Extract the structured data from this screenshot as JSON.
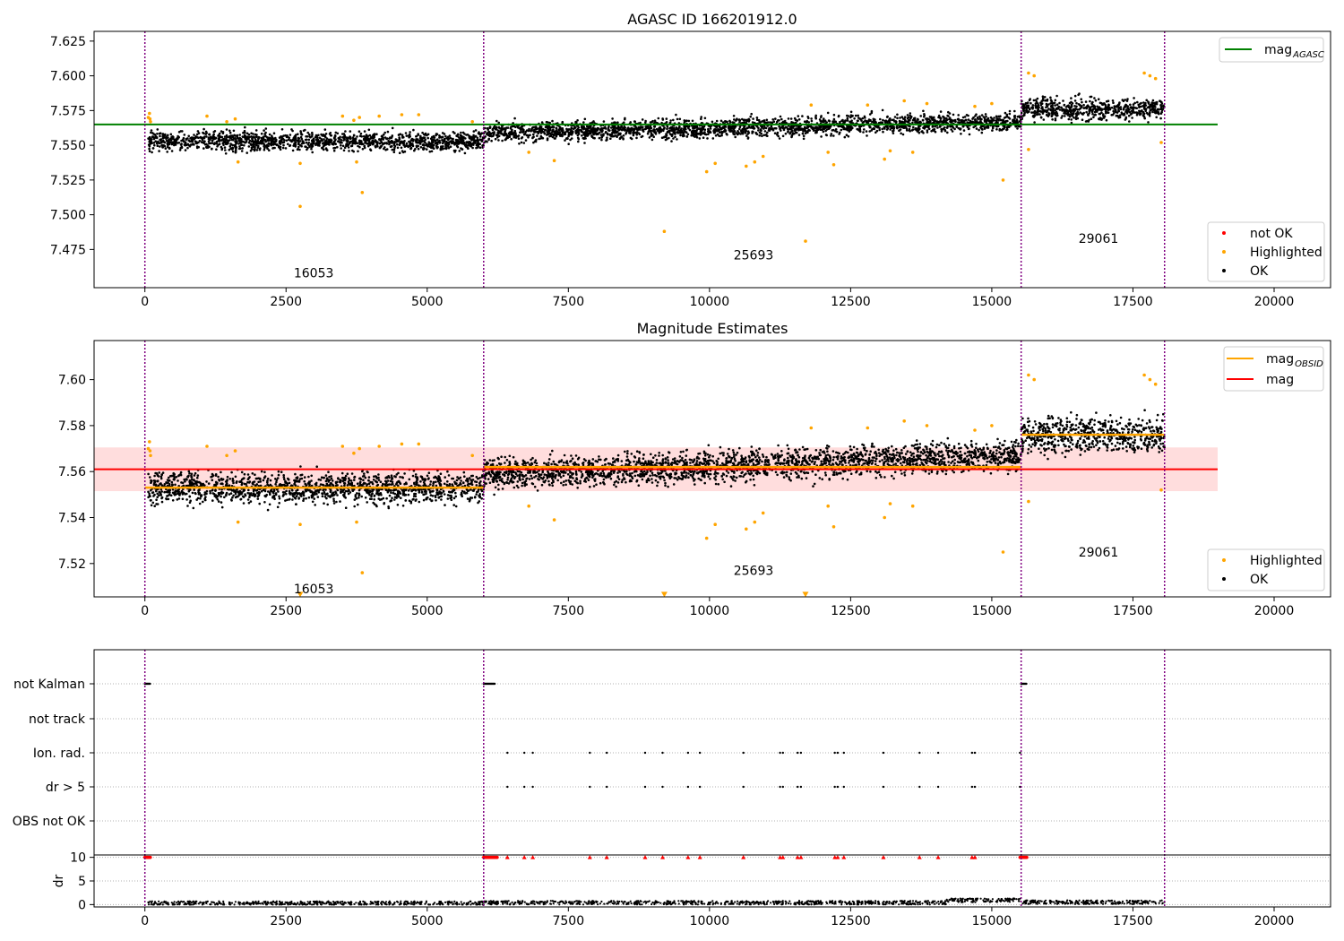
{
  "figure": {
    "title_top": "AGASC ID 166201912.0",
    "title_middle": "Magnitude Estimates"
  },
  "colors": {
    "ok": "#000000",
    "highlighted": "#ffa500",
    "not_ok": "#ff0000",
    "mag_agasc": "#008000",
    "mag_obsid": "#ffa500",
    "mag": "#ff0000",
    "band": "#ffb3b3",
    "obs_boundary": "#800080",
    "red_flag": "#ff0000"
  },
  "chart_data": [
    {
      "type": "scatter",
      "title": "AGASC ID 166201912.0",
      "xlim": [
        -900,
        21000
      ],
      "ylim": [
        7.4475,
        7.632
      ],
      "xticks": [
        0,
        2500,
        5000,
        7500,
        10000,
        12500,
        15000,
        17500,
        20000
      ],
      "yticks": [
        7.475,
        7.5,
        7.525,
        7.55,
        7.575,
        7.6,
        7.625
      ],
      "ytick_labels": [
        "7.475",
        "7.500",
        "7.525",
        "7.550",
        "7.575",
        "7.600",
        "7.625"
      ],
      "grid": false,
      "legend_loc": "upper-right + lower-right",
      "legend_top": [
        {
          "label": "mag",
          "sub": "AGASC",
          "kind": "line",
          "color": "#008000"
        }
      ],
      "legend_bottom": [
        {
          "label": "not OK",
          "kind": "marker",
          "color": "#ff0000"
        },
        {
          "label": "Highlighted",
          "kind": "marker",
          "color": "#ffa500"
        },
        {
          "label": "OK",
          "kind": "marker",
          "color": "#000000"
        }
      ],
      "obs_boundaries": [
        0,
        6000,
        15520,
        18060
      ],
      "obs_labels": [
        {
          "text": "16053",
          "x": 2990,
          "y": 7.458
        },
        {
          "text": "25693",
          "x": 10780,
          "y": 7.471
        },
        {
          "text": "29061",
          "x": 16890,
          "y": 7.483
        }
      ],
      "mag_agasc_line": {
        "x": [
          -900,
          19000
        ],
        "y": 7.565
      },
      "ok_series": [
        {
          "x_range": [
            60,
            6000
          ],
          "center_start": 7.553,
          "center_end": 7.553,
          "spread": 0.0065
        },
        {
          "x_range": [
            6000,
            15520
          ],
          "center_start": 7.559,
          "center_end": 7.567,
          "spread": 0.0065
        },
        {
          "x_range": [
            15520,
            18060
          ],
          "center_start": 7.576,
          "center_end": 7.576,
          "spread": 0.0075
        }
      ],
      "highlighted_points": [
        [
          60,
          7.57
        ],
        [
          80,
          7.573
        ],
        [
          90,
          7.569
        ],
        [
          100,
          7.567
        ],
        [
          1100,
          7.571
        ],
        [
          1450,
          7.567
        ],
        [
          1600,
          7.569
        ],
        [
          1650,
          7.538
        ],
        [
          2750,
          7.537
        ],
        [
          2750,
          7.506
        ],
        [
          3500,
          7.571
        ],
        [
          3700,
          7.568
        ],
        [
          3750,
          7.538
        ],
        [
          3800,
          7.57
        ],
        [
          3850,
          7.516
        ],
        [
          4150,
          7.571
        ],
        [
          4550,
          7.572
        ],
        [
          4850,
          7.572
        ],
        [
          5800,
          7.567
        ],
        [
          6800,
          7.545
        ],
        [
          7250,
          7.539
        ],
        [
          9200,
          7.488
        ],
        [
          9950,
          7.531
        ],
        [
          10100,
          7.537
        ],
        [
          10650,
          7.535
        ],
        [
          10800,
          7.538
        ],
        [
          10950,
          7.542
        ],
        [
          11700,
          7.481
        ],
        [
          11800,
          7.579
        ],
        [
          12100,
          7.545
        ],
        [
          12200,
          7.536
        ],
        [
          12800,
          7.579
        ],
        [
          13100,
          7.54
        ],
        [
          13200,
          7.546
        ],
        [
          13450,
          7.582
        ],
        [
          13600,
          7.545
        ],
        [
          13850,
          7.58
        ],
        [
          14700,
          7.578
        ],
        [
          15000,
          7.58
        ],
        [
          15200,
          7.525
        ],
        [
          15650,
          7.547
        ],
        [
          15650,
          7.602
        ],
        [
          15750,
          7.6
        ],
        [
          17700,
          7.602
        ],
        [
          17800,
          7.6
        ],
        [
          17900,
          7.598
        ],
        [
          18000,
          7.552
        ]
      ]
    },
    {
      "type": "scatter",
      "title": "Magnitude Estimates",
      "xlim": [
        -900,
        21000
      ],
      "ylim": [
        7.5055,
        7.617
      ],
      "xticks": [
        0,
        2500,
        5000,
        7500,
        10000,
        12500,
        15000,
        17500,
        20000
      ],
      "yticks": [
        7.52,
        7.54,
        7.56,
        7.58,
        7.6
      ],
      "ytick_labels": [
        "7.52",
        "7.54",
        "7.56",
        "7.58",
        "7.60"
      ],
      "grid": false,
      "legend_loc": "upper-right + lower-right",
      "legend_top": [
        {
          "label": "mag",
          "sub": "OBSID",
          "kind": "line",
          "color": "#ffa500"
        },
        {
          "label": "mag",
          "kind": "line",
          "color": "#ff0000"
        }
      ],
      "legend_bottom": [
        {
          "label": "Highlighted",
          "kind": "marker",
          "color": "#ffa500"
        },
        {
          "label": "OK",
          "kind": "marker",
          "color": "#000000"
        }
      ],
      "obs_boundaries": [
        0,
        6000,
        15520,
        18060
      ],
      "obs_labels": [
        {
          "text": "16053",
          "x": 2990,
          "y": 7.509
        },
        {
          "text": "25693",
          "x": 10780,
          "y": 7.517
        },
        {
          "text": "29061",
          "x": 16890,
          "y": 7.525
        }
      ],
      "mag_line": {
        "x": [
          -900,
          19000
        ],
        "y": 7.561
      },
      "mag_band": {
        "x": [
          -900,
          19000
        ],
        "y": [
          7.5515,
          7.5705
        ]
      },
      "mag_obsid_lines": [
        {
          "x": [
            0,
            6000
          ],
          "y": 7.553
        },
        {
          "x": [
            6000,
            15520
          ],
          "y": 7.562
        },
        {
          "x": [
            15520,
            18060
          ],
          "y": 7.576
        }
      ],
      "ok_series": [
        {
          "x_range": [
            60,
            6000
          ],
          "center_start": 7.553,
          "center_end": 7.553,
          "spread": 0.0065
        },
        {
          "x_range": [
            6000,
            15520
          ],
          "center_start": 7.559,
          "center_end": 7.567,
          "spread": 0.0065
        },
        {
          "x_range": [
            15520,
            18060
          ],
          "center_start": 7.576,
          "center_end": 7.576,
          "spread": 0.0075
        }
      ],
      "highlighted_points": [
        [
          60,
          7.57
        ],
        [
          80,
          7.573
        ],
        [
          90,
          7.569
        ],
        [
          100,
          7.567
        ],
        [
          1100,
          7.571
        ],
        [
          1450,
          7.567
        ],
        [
          1600,
          7.569
        ],
        [
          1650,
          7.538
        ],
        [
          2750,
          7.537
        ],
        [
          3500,
          7.571
        ],
        [
          3700,
          7.568
        ],
        [
          3750,
          7.538
        ],
        [
          3800,
          7.57
        ],
        [
          3850,
          7.516
        ],
        [
          4150,
          7.571
        ],
        [
          4550,
          7.572
        ],
        [
          4850,
          7.572
        ],
        [
          5800,
          7.567
        ],
        [
          6800,
          7.545
        ],
        [
          7250,
          7.539
        ],
        [
          9950,
          7.531
        ],
        [
          10100,
          7.537
        ],
        [
          10650,
          7.535
        ],
        [
          10800,
          7.538
        ],
        [
          10950,
          7.542
        ],
        [
          11800,
          7.579
        ],
        [
          12100,
          7.545
        ],
        [
          12200,
          7.536
        ],
        [
          12800,
          7.579
        ],
        [
          13100,
          7.54
        ],
        [
          13200,
          7.546
        ],
        [
          13450,
          7.582
        ],
        [
          13600,
          7.545
        ],
        [
          13850,
          7.58
        ],
        [
          14700,
          7.578
        ],
        [
          15000,
          7.58
        ],
        [
          15200,
          7.525
        ],
        [
          15650,
          7.547
        ],
        [
          15650,
          7.602
        ],
        [
          15750,
          7.6
        ],
        [
          17700,
          7.602
        ],
        [
          17800,
          7.6
        ],
        [
          17900,
          7.598
        ],
        [
          18000,
          7.552
        ]
      ],
      "offscale_markers": [
        [
          2750,
          7.5065
        ],
        [
          9200,
          7.5065
        ],
        [
          11700,
          7.5065
        ]
      ]
    },
    {
      "type": "scatter",
      "title": "",
      "xlim": [
        -900,
        21000
      ],
      "xticks": [
        0,
        2500,
        5000,
        7500,
        10000,
        12500,
        15000,
        17500,
        20000
      ],
      "categories": [
        "not Kalman",
        "not track",
        "Ion. rad.",
        "dr > 5",
        "OBS not OK"
      ],
      "grid": "horizontal dotted",
      "obs_boundaries": [
        0,
        6000,
        15520,
        18060
      ],
      "flags": {
        "not Kalman": [
          [
            0,
            100
          ],
          [
            6000,
            6200
          ],
          [
            15520,
            15620
          ]
        ],
        "not track": [],
        "Ion. rad.": [
          6420,
          6720,
          6870,
          7880,
          8180,
          8860,
          9170,
          9620,
          9830,
          10600,
          11250,
          11300,
          11560,
          11620,
          12220,
          12270,
          12380,
          13080,
          13720,
          14050,
          14650,
          14700,
          15500
        ],
        "dr > 5": [
          6420,
          6720,
          6870,
          7880,
          8180,
          8860,
          9170,
          9620,
          9830,
          10600,
          11250,
          11300,
          11560,
          11620,
          12220,
          12270,
          12380,
          13080,
          13720,
          14050,
          14650,
          14700,
          15500
        ],
        "OBS not OK": []
      },
      "dr": {
        "ylabel": "dr",
        "yticks": [
          0,
          5,
          10
        ],
        "ylim": [
          -0.5,
          10.5
        ],
        "typical_levels": [
          {
            "x_range": [
              60,
              6000
            ],
            "level": 0.3
          },
          {
            "x_range": [
              6000,
              14200
            ],
            "level": 0.4
          },
          {
            "x_range": [
              14200,
              15500
            ],
            "level": 0.9
          },
          {
            "x_range": [
              15520,
              18060
            ],
            "level": 0.5
          }
        ],
        "capped_at_10": [
          [
            0,
            100
          ],
          [
            6000,
            6250
          ],
          6420,
          6720,
          6870,
          7880,
          8180,
          8860,
          9170,
          9620,
          9830,
          10600,
          11250,
          11300,
          11560,
          11620,
          12220,
          12270,
          12380,
          13080,
          13720,
          14050,
          14650,
          14700,
          [
            15500,
            15620
          ]
        ]
      }
    }
  ]
}
